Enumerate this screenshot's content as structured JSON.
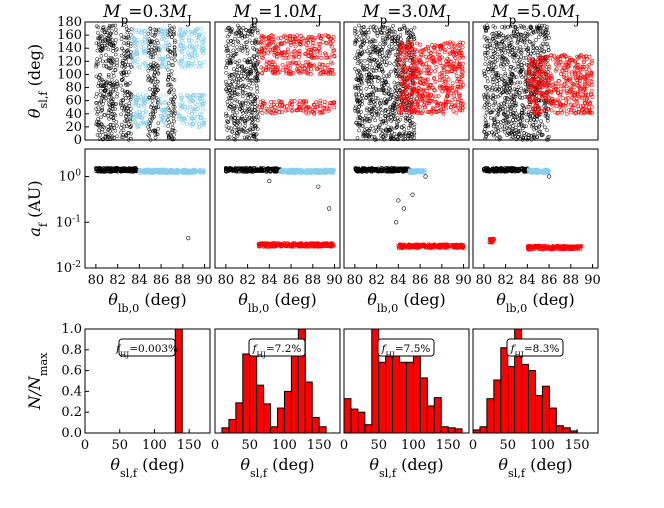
{
  "colors": {
    "background": "#ffffff",
    "axis": "#000000",
    "hj": "#ff0000",
    "cold": "#87ceeb",
    "other": "#000000",
    "bar_fill": "#ff0000",
    "bar_edge": "#000000"
  },
  "panel_titles": [
    {
      "sym": "M",
      "sub": "p",
      "eq": "=0.3",
      "sym2": "M",
      "sub2": "J"
    },
    {
      "sym": "M",
      "sub": "p",
      "eq": "=1.0",
      "sym2": "M",
      "sub2": "J"
    },
    {
      "sym": "M",
      "sub": "p",
      "eq": "=3.0",
      "sym2": "M",
      "sub2": "J"
    },
    {
      "sym": "M",
      "sub": "p",
      "eq": "=5.0",
      "sym2": "M",
      "sub2": "J"
    }
  ],
  "row_labels": {
    "row1": {
      "sym": "θ",
      "sub": "sl,f",
      "rest": " (deg)"
    },
    "row2": {
      "sym": "a",
      "sub": "f",
      "rest": " (AU)"
    },
    "row3": {
      "pre": "N/N",
      "sub": "max"
    }
  },
  "x_labels": {
    "row2": {
      "sym": "θ",
      "sub": "lb,0",
      "rest": " (deg)"
    },
    "row3": {
      "sym": "θ",
      "sub": "sl,f",
      "rest": " (deg)"
    }
  },
  "chart_data": [
    {
      "type": "scatter",
      "row": 1,
      "description_of_axes": "initial inclination vs final spin-orbit angle",
      "x_range": [
        79,
        90.5
      ],
      "y_range": [
        0,
        180
      ],
      "y_ticks": [
        "0",
        "20",
        "40",
        "60",
        "80",
        "100",
        "120",
        "140",
        "160",
        "180"
      ],
      "series_colors": [
        "#000000",
        "#87ceeb",
        "#ff0000"
      ],
      "panels": [
        {
          "black_x_bands": [
            [
              80,
              82
            ],
            [
              82.3,
              83.3
            ],
            [
              84.8,
              85.8
            ],
            [
              86.6,
              87.3
            ]
          ],
          "cold_x_bands": [
            [
              83.3,
              84.8
            ],
            [
              85.8,
              86.6
            ],
            [
              87.6,
              90
            ]
          ],
          "hj_x": [],
          "hj_y": []
        },
        {
          "black_x_bands": [
            [
              80,
              83
            ]
          ],
          "cold_x_bands": [],
          "hj_x": [
            [
              83,
              90
            ]
          ],
          "hj_y": [
            [
              40,
              60
            ],
            [
              100,
              120
            ],
            [
              125,
              160
            ]
          ]
        },
        {
          "black_x_bands": [
            [
              80,
              85.5
            ]
          ],
          "cold_x_bands": [],
          "hj_x": [
            [
              84,
              90
            ]
          ],
          "hj_y": [
            [
              40,
              150
            ]
          ]
        },
        {
          "black_x_bands": [
            [
              80,
              86
            ]
          ],
          "cold_x_bands": [],
          "hj_x": [
            [
              84,
              90
            ]
          ],
          "hj_y": [
            [
              40,
              130
            ]
          ]
        }
      ]
    },
    {
      "type": "scatter",
      "row": 2,
      "scale": "log",
      "x_range": [
        79,
        90.5
      ],
      "x_ticks": [
        "80",
        "82",
        "84",
        "86",
        "88",
        "90"
      ],
      "y_range": [
        0.01,
        4.0
      ],
      "y_ticks": [
        "10^0",
        "10^-1",
        "10^-2"
      ],
      "panels": [
        {
          "cold_band": {
            "x": [
              84,
              90
            ],
            "a": 1.3
          },
          "black_band": {
            "x": [
              80,
              84
            ],
            "a": 1.4
          },
          "hj_band": null,
          "outliers": [
            [
              88.5,
              0.045
            ]
          ]
        },
        {
          "cold_band": {
            "x": [
              85,
              90
            ],
            "a": 1.3
          },
          "black_band": {
            "x": [
              80,
              85
            ],
            "a": 1.4
          },
          "hj_band": {
            "x": [
              83,
              90
            ],
            "a": 0.032
          },
          "outliers": [
            [
              84,
              0.8
            ],
            [
              89.5,
              0.2
            ],
            [
              88.5,
              0.6
            ]
          ]
        },
        {
          "cold_band": {
            "x": [
              85,
              86.5
            ],
            "a": 1.3
          },
          "black_band": {
            "x": [
              80,
              85
            ],
            "a": 1.4
          },
          "hj_band": {
            "x": [
              84,
              90
            ],
            "a": 0.03
          },
          "outliers": [
            [
              84,
              0.3
            ],
            [
              84.5,
              0.2
            ],
            [
              83.8,
              0.1
            ],
            [
              85.3,
              0.4
            ],
            [
              86.5,
              1.0
            ]
          ]
        },
        {
          "cold_band": {
            "x": [
              84,
              86
            ],
            "a": 1.3
          },
          "black_band": {
            "x": [
              80,
              84
            ],
            "a": 1.4
          },
          "hj_band": {
            "x": [
              84,
              89
            ],
            "a": 0.028
          },
          "hj_extra": {
            "x": [
              80.5,
              81
            ],
            "a": 0.04
          },
          "outliers": [
            [
              86,
              1.0
            ]
          ]
        }
      ]
    },
    {
      "type": "bar",
      "row": 3,
      "x_range": [
        0,
        180
      ],
      "x_ticks": [
        "0",
        "50",
        "100",
        "150"
      ],
      "y_range": [
        0.0,
        1.0
      ],
      "y_ticks": [
        "0.0",
        "0.2",
        "0.4",
        "0.6",
        "0.8",
        "1.0"
      ],
      "bin_width": 10,
      "panels": [
        {
          "annotation": {
            "sym": "f",
            "sub": "HJ",
            "eq": "=0.003%"
          },
          "bins": [
            {
              "x0": 130,
              "x1": 140,
              "h": 1.0
            }
          ]
        },
        {
          "annotation": {
            "sym": "f",
            "sub": "HJ",
            "eq": "=7.2%"
          },
          "bins": [
            {
              "x0": 10,
              "x1": 20,
              "h": 0.05
            },
            {
              "x0": 20,
              "x1": 30,
              "h": 0.13
            },
            {
              "x0": 30,
              "x1": 40,
              "h": 0.29
            },
            {
              "x0": 40,
              "x1": 50,
              "h": 0.76
            },
            {
              "x0": 50,
              "x1": 60,
              "h": 0.79
            },
            {
              "x0": 60,
              "x1": 70,
              "h": 0.46
            },
            {
              "x0": 70,
              "x1": 80,
              "h": 0.28
            },
            {
              "x0": 80,
              "x1": 90,
              "h": 0.06
            },
            {
              "x0": 90,
              "x1": 100,
              "h": 0.24
            },
            {
              "x0": 100,
              "x1": 110,
              "h": 0.4
            },
            {
              "x0": 110,
              "x1": 120,
              "h": 0.78
            },
            {
              "x0": 120,
              "x1": 130,
              "h": 1.0
            },
            {
              "x0": 130,
              "x1": 140,
              "h": 0.49
            },
            {
              "x0": 140,
              "x1": 150,
              "h": 0.15
            },
            {
              "x0": 150,
              "x1": 160,
              "h": 0.06
            }
          ]
        },
        {
          "annotation": {
            "sym": "f",
            "sub": "HJ",
            "eq": "=7.5%"
          },
          "bins": [
            {
              "x0": 0,
              "x1": 10,
              "h": 0.33
            },
            {
              "x0": 10,
              "x1": 20,
              "h": 0.23
            },
            {
              "x0": 20,
              "x1": 30,
              "h": 0.2
            },
            {
              "x0": 30,
              "x1": 40,
              "h": 0.08
            },
            {
              "x0": 40,
              "x1": 50,
              "h": 1.0
            },
            {
              "x0": 50,
              "x1": 60,
              "h": 0.68
            },
            {
              "x0": 60,
              "x1": 70,
              "h": 0.8
            },
            {
              "x0": 70,
              "x1": 80,
              "h": 0.76
            },
            {
              "x0": 80,
              "x1": 90,
              "h": 0.68
            },
            {
              "x0": 90,
              "x1": 100,
              "h": 0.68
            },
            {
              "x0": 100,
              "x1": 110,
              "h": 0.74
            },
            {
              "x0": 110,
              "x1": 120,
              "h": 0.53
            },
            {
              "x0": 120,
              "x1": 130,
              "h": 0.26
            },
            {
              "x0": 130,
              "x1": 140,
              "h": 0.34
            },
            {
              "x0": 140,
              "x1": 150,
              "h": 0.06
            },
            {
              "x0": 150,
              "x1": 160,
              "h": 0.05
            },
            {
              "x0": 160,
              "x1": 170,
              "h": 0.04
            }
          ]
        },
        {
          "annotation": {
            "sym": "f",
            "sub": "HJ",
            "eq": "=8.3%"
          },
          "bins": [
            {
              "x0": 0,
              "x1": 10,
              "h": 0.03
            },
            {
              "x0": 10,
              "x1": 20,
              "h": 0.06
            },
            {
              "x0": 20,
              "x1": 30,
              "h": 0.33
            },
            {
              "x0": 30,
              "x1": 40,
              "h": 0.51
            },
            {
              "x0": 40,
              "x1": 50,
              "h": 0.82
            },
            {
              "x0": 50,
              "x1": 60,
              "h": 0.64
            },
            {
              "x0": 60,
              "x1": 70,
              "h": 1.0
            },
            {
              "x0": 70,
              "x1": 80,
              "h": 0.66
            },
            {
              "x0": 80,
              "x1": 90,
              "h": 0.6
            },
            {
              "x0": 90,
              "x1": 100,
              "h": 0.36
            },
            {
              "x0": 100,
              "x1": 110,
              "h": 0.45
            },
            {
              "x0": 110,
              "x1": 120,
              "h": 0.24
            },
            {
              "x0": 120,
              "x1": 130,
              "h": 0.07
            },
            {
              "x0": 130,
              "x1": 140,
              "h": 0.05
            },
            {
              "x0": 140,
              "x1": 150,
              "h": 0.02
            }
          ]
        }
      ]
    }
  ]
}
